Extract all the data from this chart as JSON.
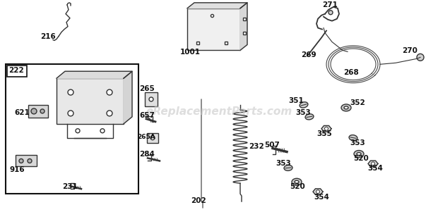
{
  "bg_color": "#ffffff",
  "ec": "#333333",
  "lw": 1.0,
  "label_fs": 7.5,
  "watermark": "eReplacementParts.com",
  "watermark_color": "#c8c8c8",
  "watermark_fs": 11
}
